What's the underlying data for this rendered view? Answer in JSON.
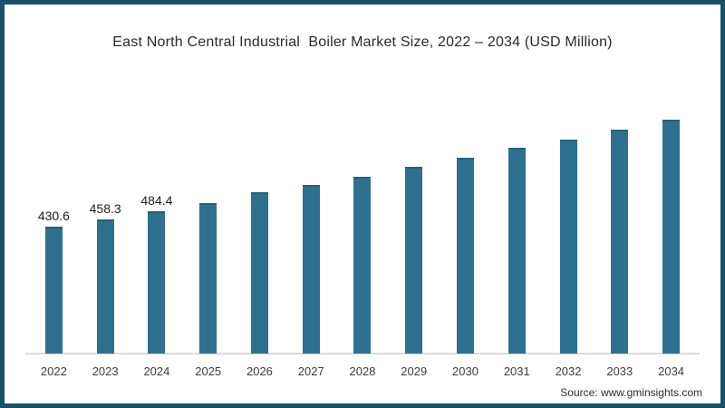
{
  "frame": {
    "border_color": "#17506a",
    "background_color": "#ffffff"
  },
  "footer": {
    "source": "Source: www.gminsights.com"
  },
  "chart_data": {
    "type": "bar",
    "title": "East North Central Industrial  Boiler Market Size, 2022 – 2034 (USD Million)",
    "categories": [
      "2022",
      "2023",
      "2024",
      "2025",
      "2026",
      "2027",
      "2028",
      "2029",
      "2030",
      "2031",
      "2032",
      "2033",
      "2034"
    ],
    "values": [
      430.6,
      458.3,
      484.4,
      512,
      549,
      574,
      602,
      636,
      667,
      700,
      728,
      762,
      796
    ],
    "data_labels": [
      "430.6",
      "458.3",
      "484.4",
      "",
      "",
      "",
      "",
      "",
      "",
      "",
      "",
      "",
      ""
    ],
    "bar_color": "#2f708e",
    "axis_line_color": "#dcdcdc",
    "xlabel": "",
    "ylabel": "",
    "ylim": [
      0,
      850
    ],
    "grid": false,
    "legend": false
  }
}
